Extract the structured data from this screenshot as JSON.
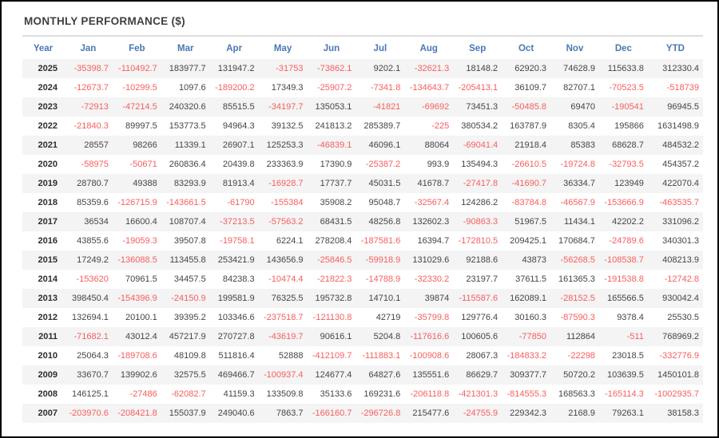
{
  "widget": {
    "title": "MONTHLY PERFORMANCE ($)"
  },
  "colors": {
    "title_text": "#3f3f3f",
    "divider": "#dddddd",
    "header_text": "#4a77b5",
    "positive_value": "#454545",
    "negative_value": "#f75e5e",
    "year_text": "#2d2d2d",
    "row_stripe": "#f4f4f4"
  },
  "table": {
    "columns": [
      "Year",
      "Jan",
      "Feb",
      "Mar",
      "Apr",
      "May",
      "Jun",
      "Jul",
      "Aug",
      "Sep",
      "Oct",
      "Nov",
      "Dec",
      "YTD"
    ],
    "rows": [
      {
        "year": "2025",
        "values": [
          -35398.7,
          -110492.7,
          183977.7,
          131947.2,
          -31753,
          -73862.1,
          9202.1,
          -32621.3,
          18148.2,
          62920.3,
          74628.9,
          115633.8,
          312330.4
        ]
      },
      {
        "year": "2024",
        "values": [
          -12673.7,
          -10299.5,
          1097.6,
          -189200.2,
          17349.3,
          -25907.2,
          -7341.8,
          -134643.7,
          -205413.1,
          36109.7,
          82707.1,
          -70523.5,
          -518739
        ]
      },
      {
        "year": "2023",
        "values": [
          -72913,
          -47214.5,
          240320.6,
          85515.5,
          -34197.7,
          135053.1,
          -41821,
          -69692,
          73451.3,
          -50485.8,
          69470,
          -190541,
          96945.5
        ]
      },
      {
        "year": "2022",
        "values": [
          -21840.3,
          89997.5,
          153773.5,
          94964.3,
          39132.5,
          241813.2,
          285389.7,
          -225,
          380534.2,
          163787.9,
          8305.4,
          195866,
          1631498.9
        ]
      },
      {
        "year": "2021",
        "values": [
          28557,
          98266,
          11339.1,
          26907.1,
          125253.3,
          -46839.1,
          46096.1,
          88064,
          -69041.4,
          21918.4,
          85383,
          68628.7,
          484532.2
        ]
      },
      {
        "year": "2020",
        "values": [
          -58975,
          -50671,
          260836.4,
          20439.8,
          233363.9,
          17390.9,
          -25387.2,
          993.9,
          135494.3,
          -26610.5,
          -19724.8,
          -32793.5,
          454357.2
        ]
      },
      {
        "year": "2019",
        "values": [
          28780.7,
          49388,
          83293.9,
          81913.4,
          -16928.7,
          17737.7,
          45031.5,
          41678.7,
          -27417.8,
          -41690.7,
          36334.7,
          123949,
          422070.4
        ]
      },
      {
        "year": "2018",
        "values": [
          85359.6,
          -126715.9,
          -143661.5,
          -61790,
          -155384,
          35908.2,
          95048.7,
          -32567.4,
          124286.2,
          -83784.8,
          -46567.9,
          -153666.9,
          -463535.7
        ]
      },
      {
        "year": "2017",
        "values": [
          36534,
          16600.4,
          108707.4,
          -37213.5,
          -57563.2,
          68431.5,
          48256.8,
          132602.3,
          -90863.3,
          51967.5,
          11434.1,
          42202.2,
          331096.2
        ]
      },
      {
        "year": "2016",
        "values": [
          43855.6,
          -19059.3,
          39507.8,
          -19758.1,
          6224.1,
          278208.4,
          -187581.6,
          16394.7,
          -172810.5,
          209425.1,
          170684.7,
          -24789.6,
          340301.3
        ]
      },
      {
        "year": "2015",
        "values": [
          17249.2,
          -136088.5,
          113455.8,
          253421.9,
          143656.9,
          -25846.5,
          -59918.9,
          131029.6,
          92188.6,
          43873,
          -56268.5,
          -108538.7,
          408213.9
        ]
      },
      {
        "year": "2014",
        "values": [
          -153620,
          70961.5,
          34457.5,
          84238.3,
          -10474.4,
          -21822.3,
          -14788.9,
          -32330.2,
          23197.7,
          37611.5,
          161365.3,
          -191538.8,
          -12742.8
        ]
      },
      {
        "year": "2013",
        "values": [
          398450.4,
          -154396.9,
          -24150.9,
          199581.9,
          76325.5,
          195732.8,
          14710.1,
          39874,
          -115587.6,
          162089.1,
          -28152.5,
          165566.5,
          930042.4
        ]
      },
      {
        "year": "2012",
        "values": [
          132694.1,
          20100.1,
          39395.2,
          103346.6,
          -237518.7,
          -121130.8,
          42719,
          -35799.8,
          129776.4,
          30160.3,
          -87590.3,
          9378.4,
          25530.5
        ]
      },
      {
        "year": "2011",
        "values": [
          -71682.1,
          43012.4,
          457217.9,
          270727.8,
          -43619.7,
          90616.1,
          5204.8,
          -117616.6,
          100605.6,
          -77850,
          112864,
          -511,
          768969.2
        ]
      },
      {
        "year": "2010",
        "values": [
          25064.3,
          -189708.6,
          48109.8,
          511816.4,
          52888,
          -412109.7,
          -111883.1,
          -100908.6,
          28067.3,
          -184833.2,
          -22298,
          23018.5,
          -332776.9
        ]
      },
      {
        "year": "2009",
        "values": [
          33670.7,
          139902.6,
          32575.5,
          469466.7,
          -100937.4,
          124677.4,
          64827.6,
          135551.6,
          86629.7,
          309377.7,
          50720.2,
          103639.5,
          1450101.8
        ]
      },
      {
        "year": "2008",
        "values": [
          146125.1,
          -27486,
          -62082.7,
          41159.3,
          133509.8,
          35133.6,
          169231.6,
          -206118.8,
          -421301.3,
          -814555.3,
          168563.3,
          -165114.3,
          -1002935.7
        ]
      },
      {
        "year": "2007",
        "values": [
          -203970.6,
          -208421.8,
          155037.9,
          249040.6,
          7863.7,
          -166160.7,
          -296726.8,
          215477.6,
          -24755.9,
          229342.3,
          2168.9,
          79263.1,
          38158.3
        ]
      }
    ]
  }
}
